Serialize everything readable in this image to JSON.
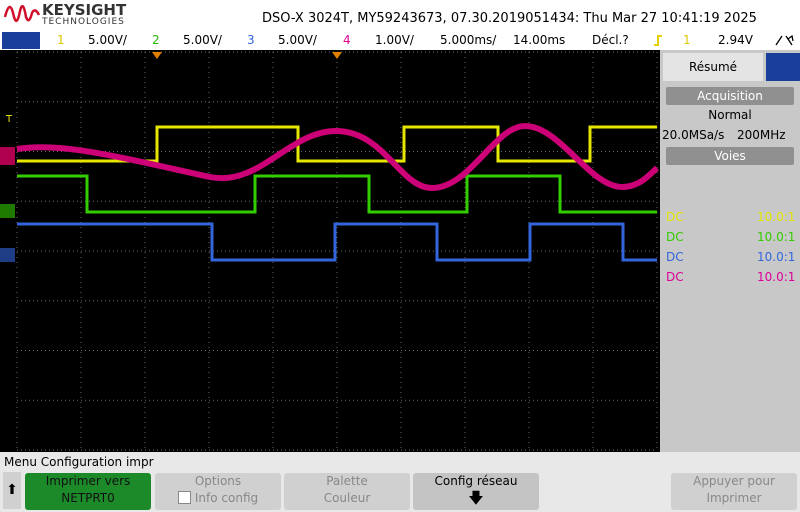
{
  "header": {
    "brand": "KEYSIGHT",
    "sub": "TECHNOLOGIES",
    "title": "DSO-X 3024T, MY59243673, 07.30.2019051434: Thu Mar 27 10:41:19 2025"
  },
  "channels": [
    {
      "num": "1",
      "scale": "5.00V/"
    },
    {
      "num": "2",
      "scale": "5.00V/"
    },
    {
      "num": "3",
      "scale": "5.00V/"
    },
    {
      "num": "4",
      "scale": "1.00V/"
    }
  ],
  "timebase": {
    "scale": "5.000ms/",
    "delay": "14.00ms"
  },
  "trigger": {
    "mode": "Décl.?",
    "source": "1",
    "level": "2.94V"
  },
  "panel": {
    "tab": "Résumé",
    "acq_title": "Acquisition",
    "acq_mode": "Normal",
    "sample_rate": "20.0MSa/s",
    "bandwidth": "200MHz",
    "voies_title": "Voies",
    "voies": [
      {
        "coupling": "DC",
        "probe": "10.0:1"
      },
      {
        "coupling": "DC",
        "probe": "10.0:1"
      },
      {
        "coupling": "DC",
        "probe": "10.0:1"
      },
      {
        "coupling": "DC",
        "probe": "10.0:1"
      }
    ]
  },
  "menu": {
    "title": "Menu Configuration impr",
    "keys": [
      {
        "line1": "Imprimer vers",
        "line2": "NETPRT0"
      },
      {
        "line1": "Options",
        "line2": "Info config"
      },
      {
        "line1": "Palette",
        "line2": "Couleur"
      },
      {
        "line1": "Config réseau"
      },
      {
        "line1": "Appuyer pour",
        "line2": "Imprimer"
      }
    ]
  }
}
